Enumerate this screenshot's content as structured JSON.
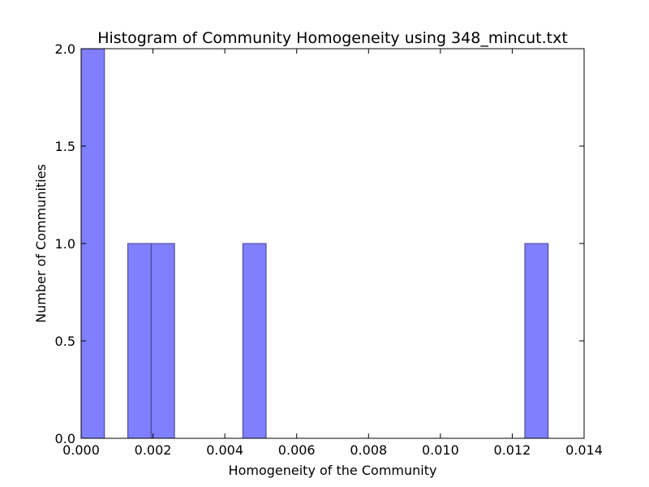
{
  "chart_data": {
    "type": "bar",
    "title": "Histogram of Community Homogeneity using 348_mincut.txt",
    "xlabel": "Homogeneity of the Community",
    "ylabel": "Number of Communities",
    "xlim": [
      0.0,
      0.014
    ],
    "ylim": [
      0.0,
      2.0
    ],
    "x_ticks": [
      "0.000",
      "0.002",
      "0.004",
      "0.006",
      "0.008",
      "0.010",
      "0.012",
      "0.014"
    ],
    "y_ticks": [
      "0.0",
      "0.5",
      "1.0",
      "1.5",
      "2.0"
    ],
    "bar_color": "#7f7fff",
    "edge_color": "#44448a",
    "grid": false,
    "bins": [
      {
        "x0": 0.0,
        "x1": 0.00065,
        "value": 2
      },
      {
        "x0": 0.0013,
        "x1": 0.00195,
        "value": 1
      },
      {
        "x0": 0.00195,
        "x1": 0.0026,
        "value": 1
      },
      {
        "x0": 0.0045,
        "x1": 0.00515,
        "value": 1
      },
      {
        "x0": 0.01235,
        "x1": 0.013,
        "value": 1
      }
    ]
  }
}
